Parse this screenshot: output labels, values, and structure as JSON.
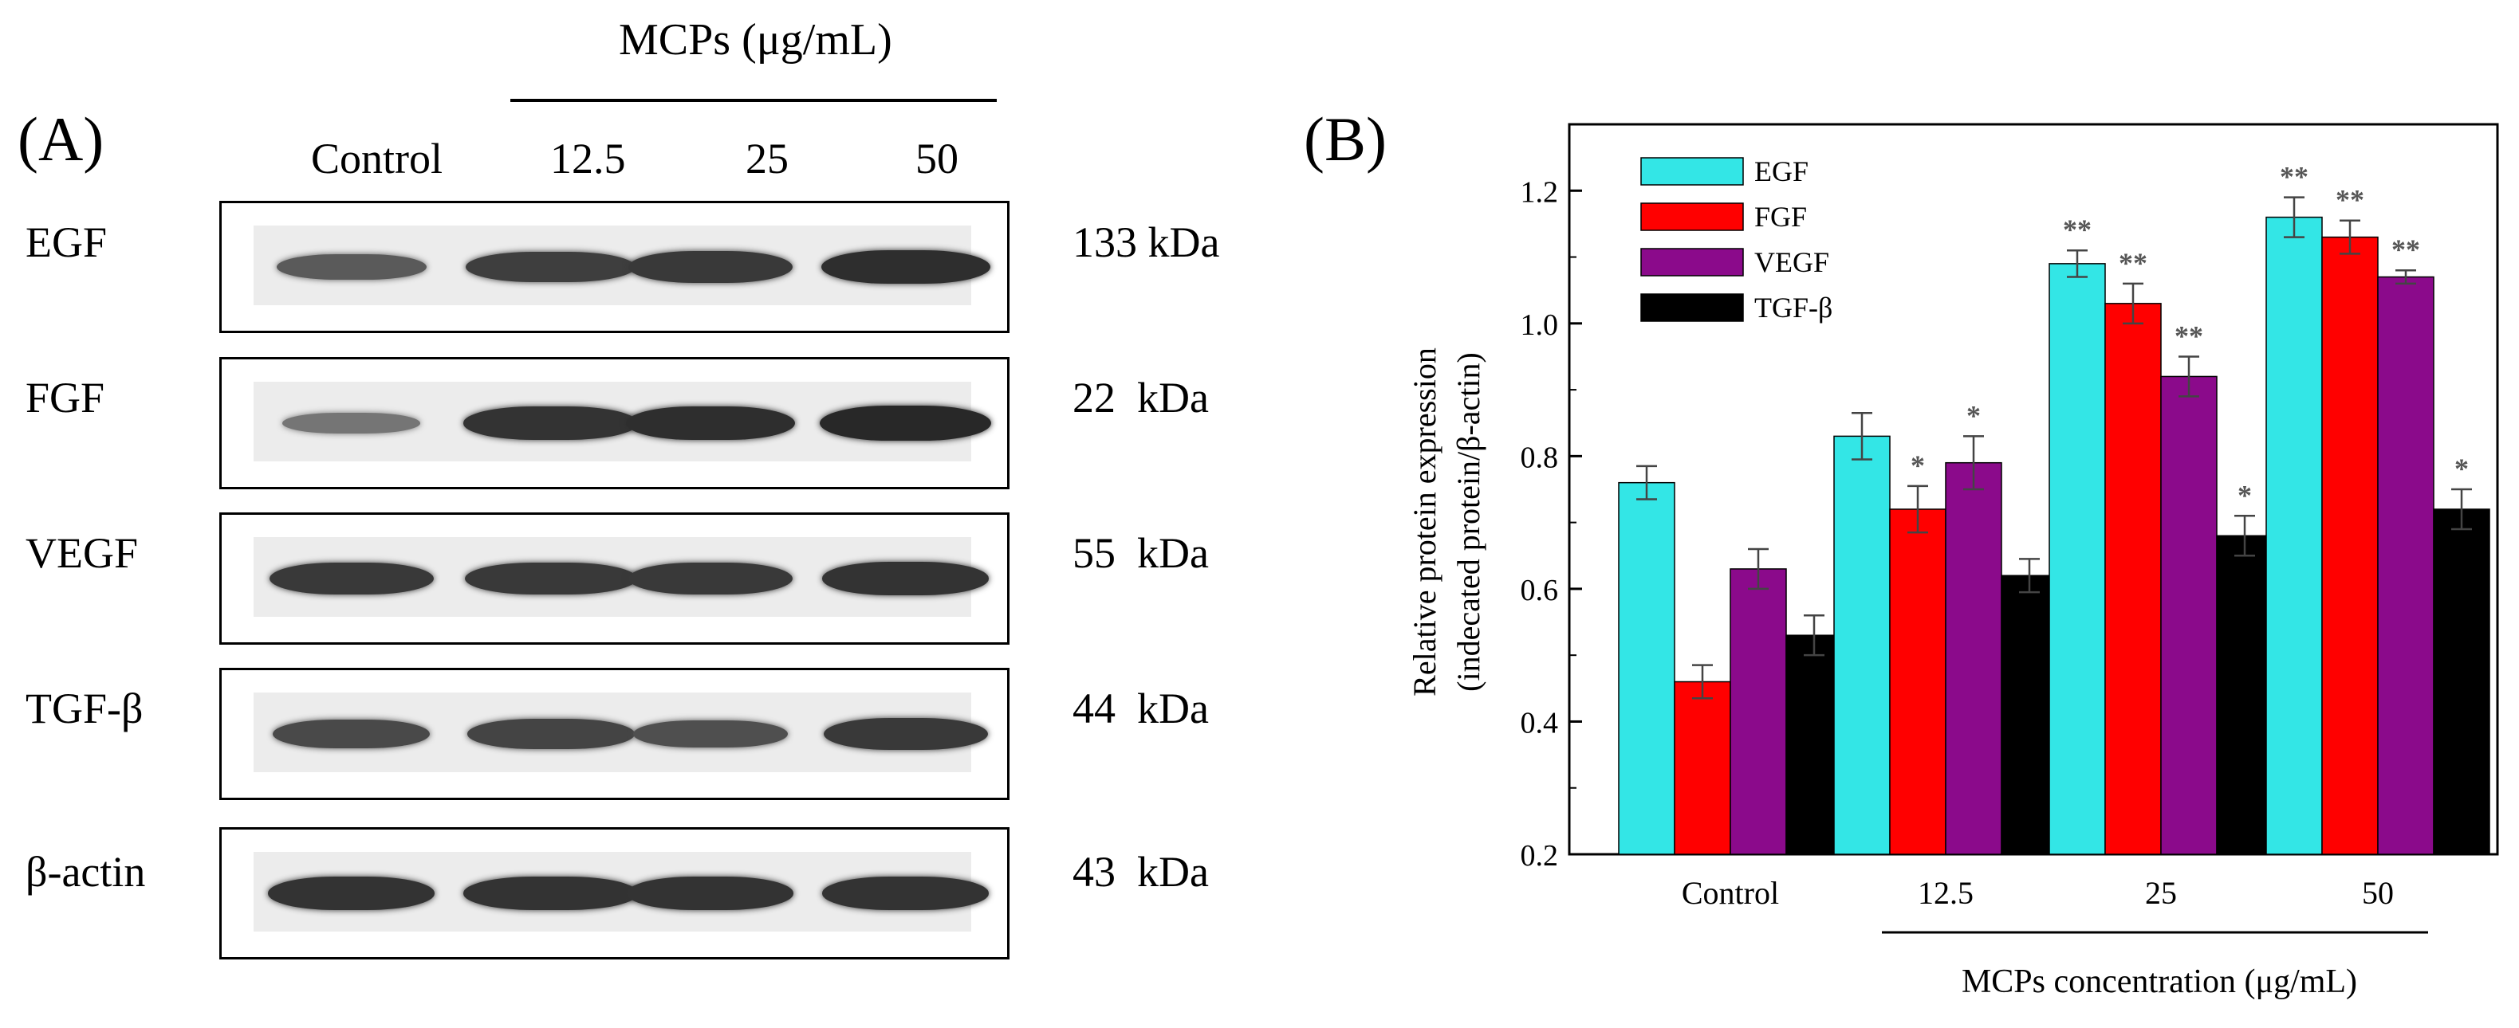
{
  "panel_a": {
    "label": "(A)",
    "header": "MCPs (μg/mL)",
    "lanes": [
      "Control",
      "12.5",
      "25",
      "50"
    ],
    "blots": [
      {
        "protein": "EGF",
        "kda": "133 kDa",
        "intensity": [
          0.55,
          0.8,
          0.85,
          0.95
        ]
      },
      {
        "protein": "FGF",
        "kda": "22  kDa",
        "intensity": [
          0.3,
          0.9,
          0.95,
          1.0
        ]
      },
      {
        "protein": "VEGF",
        "kda": "55  kDa",
        "intensity": [
          0.85,
          0.85,
          0.85,
          0.9
        ]
      },
      {
        "protein": "TGF-β",
        "kda": "44  kDa",
        "intensity": [
          0.7,
          0.75,
          0.65,
          0.85
        ]
      },
      {
        "protein": "β-actin",
        "kda": "43  kDa",
        "intensity": [
          0.9,
          0.9,
          0.9,
          0.9
        ]
      }
    ]
  },
  "panel_b": {
    "label": "(B)",
    "chart_data": {
      "type": "bar",
      "title": "",
      "ylabel_line1": "Relative protein expression",
      "ylabel_line2": "(indecated protein/β-actin)",
      "xlabel": "MCPs concentration (μg/mL)",
      "categories": [
        "Control",
        "12.5",
        "25",
        "50"
      ],
      "ylim": [
        0.2,
        1.3
      ],
      "yticks": [
        "0.2",
        "0.4",
        "0.6",
        "0.8",
        "1.0",
        "1.2"
      ],
      "legend_position": "top-left",
      "series": [
        {
          "name": "EGF",
          "color": "#33e6e6",
          "values": [
            0.76,
            0.83,
            1.09,
            1.16
          ],
          "errors": [
            0.025,
            0.035,
            0.02,
            0.03
          ],
          "sig": [
            "",
            "",
            "**",
            "**"
          ]
        },
        {
          "name": "FGF",
          "color": "#ff0000",
          "values": [
            0.46,
            0.72,
            1.03,
            1.13
          ],
          "errors": [
            0.025,
            0.035,
            0.03,
            0.025
          ],
          "sig": [
            "",
            "*",
            "**",
            "**"
          ]
        },
        {
          "name": "VEGF",
          "color": "#8b0a8b",
          "values": [
            0.63,
            0.79,
            0.92,
            1.07
          ],
          "errors": [
            0.03,
            0.04,
            0.03,
            0.01
          ],
          "sig": [
            "",
            "*",
            "**",
            "**"
          ]
        },
        {
          "name": "TGF-β",
          "color": "#000000",
          "values": [
            0.53,
            0.62,
            0.68,
            0.72
          ],
          "errors": [
            0.03,
            0.025,
            0.03,
            0.03
          ],
          "sig": [
            "",
            "",
            "*",
            "*"
          ]
        }
      ]
    }
  }
}
